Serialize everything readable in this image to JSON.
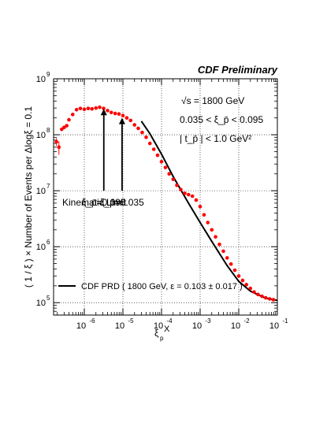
{
  "chart_data": {
    "type": "scatter",
    "title": "CDF Preliminary",
    "x_scale": "log",
    "y_scale": "log",
    "xlim": [
      1.6e-07,
      0.1
    ],
    "ylim": [
      60000,
      1000000000
    ],
    "grid": true,
    "x_ticks": [
      {
        "value": 1e-06,
        "base": "10",
        "exp": "-6"
      },
      {
        "value": 1e-05,
        "base": "10",
        "exp": "-5"
      },
      {
        "value": 0.0001,
        "base": "10",
        "exp": "-4"
      },
      {
        "value": 0.001,
        "base": "10",
        "exp": "-3"
      },
      {
        "value": 0.01,
        "base": "10",
        "exp": "-2"
      },
      {
        "value": 0.1,
        "base": "10",
        "exp": "-1"
      }
    ],
    "y_ticks": [
      {
        "value": 100000.0,
        "base": "10",
        "exp": "5"
      },
      {
        "value": 1000000.0,
        "base": "10",
        "exp": "6"
      },
      {
        "value": 10000000.0,
        "base": "10",
        "exp": "7"
      },
      {
        "value": 100000000.0,
        "base": "10",
        "exp": "8"
      },
      {
        "value": 1000000000.0,
        "base": "10",
        "exp": "9"
      }
    ],
    "xlabel": {
      "main": "ξ",
      "sub": "p",
      "suffix": "X"
    },
    "ylabel": "( 1 / ξ ) × Number of Events per Δlogξ = 0.1",
    "energy_label": "√s = 1800 GeV",
    "cut_labels": [
      "0.035 < ξ_p̄ < 0.095",
      "| t_p̄ | < 1.0 GeV²"
    ],
    "arrows": [
      {
        "x": 3.2e-06,
        "y_tail": 10000000.0,
        "y_head": 290000000.0,
        "label": "ξ_p̄=0.095"
      },
      {
        "x": 9.5e-06,
        "y_tail": 10000000.0,
        "y_head": 200000000.0,
        "label": "ξ_p̄=0.035"
      }
    ],
    "kinematic_label": "Kinematic Limit",
    "legend": {
      "position": "bottom",
      "label": "CDF PRD ( 1800 GeV, ε = 0.103 ± 0.017 )"
    },
    "series": [
      {
        "marker_color": "#ff0000",
        "points": [
          [
            1.9e-07,
            75000000.0,
            12000000.0
          ],
          [
            2.2e-07,
            60000000.0,
            16000000.0
          ],
          [
            2.6e-07,
            125000000.0,
            0
          ],
          [
            3e-07,
            135000000.0,
            0
          ],
          [
            3.5e-07,
            145000000.0,
            0
          ],
          [
            4e-07,
            185000000.0,
            0
          ],
          [
            5e-07,
            230000000.0,
            0
          ],
          [
            6.3e-07,
            280000000.0,
            0
          ],
          [
            7.9e-07,
            295000000.0,
            0
          ],
          [
            1e-06,
            285000000.0,
            0
          ],
          [
            1.26e-06,
            295000000.0,
            0
          ],
          [
            1.58e-06,
            290000000.0,
            0
          ],
          [
            2e-06,
            300000000.0,
            0
          ],
          [
            2.5e-06,
            310000000.0,
            0
          ],
          [
            3.16e-06,
            295000000.0,
            0
          ],
          [
            4e-06,
            270000000.0,
            0
          ],
          [
            5e-06,
            250000000.0,
            0
          ],
          [
            6.3e-06,
            240000000.0,
            0
          ],
          [
            7.9e-06,
            235000000.0,
            0
          ],
          [
            1e-05,
            220000000.0,
            0
          ],
          [
            1.26e-05,
            200000000.0,
            0
          ],
          [
            1.58e-05,
            180000000.0,
            0
          ],
          [
            2e-05,
            150000000.0,
            0
          ],
          [
            2.5e-05,
            130000000.0,
            0
          ],
          [
            3.16e-05,
            110000000.0,
            0
          ],
          [
            4e-05,
            90000000.0,
            0
          ],
          [
            5e-05,
            70000000.0,
            0
          ],
          [
            6.3e-05,
            55000000.0,
            0
          ],
          [
            7.9e-05,
            43000000.0,
            0
          ],
          [
            0.0001,
            33000000.0,
            0
          ],
          [
            0.000126,
            26000000.0,
            0
          ],
          [
            0.000158,
            20000000.0,
            0
          ],
          [
            0.0002,
            16000000.0,
            0
          ],
          [
            0.00025,
            12500000.0,
            0
          ],
          [
            0.000316,
            10500000.0,
            0
          ],
          [
            0.0004,
            9000000.0,
            0
          ],
          [
            0.0005,
            8500000.0,
            0
          ],
          [
            0.00063,
            8000000.0,
            0
          ],
          [
            0.00079,
            6800000.0,
            0
          ],
          [
            0.001,
            5200000.0,
            0
          ],
          [
            0.00126,
            3700000.0,
            0
          ],
          [
            0.00158,
            2700000.0,
            0
          ],
          [
            0.002,
            2000000.0,
            0
          ],
          [
            0.0025,
            1500000.0,
            0
          ],
          [
            0.00316,
            1100000.0,
            0
          ],
          [
            0.004,
            830000.0,
            0
          ],
          [
            0.005,
            630000.0,
            0
          ],
          [
            0.0063,
            490000.0,
            0
          ],
          [
            0.0079,
            380000.0,
            0
          ],
          [
            0.01,
            300000.0,
            0
          ],
          [
            0.0126,
            250000.0,
            0
          ],
          [
            0.0158,
            210000.0,
            0
          ],
          [
            0.02,
            180000.0,
            0
          ],
          [
            0.025,
            155000.0,
            0
          ],
          [
            0.0316,
            140000.0,
            0
          ],
          [
            0.04,
            130000.0,
            0
          ],
          [
            0.05,
            122000.0,
            0
          ],
          [
            0.063,
            117000.0,
            0
          ],
          [
            0.079,
            113000.0,
            0
          ]
        ]
      },
      {
        "line_color": "#000000",
        "points": [
          [
            3e-05,
            175000000.0
          ],
          [
            5e-05,
            105000000.0
          ],
          [
            0.0001,
            45000000.0
          ],
          [
            0.0002,
            18000000.0
          ],
          [
            0.0005,
            6000000.0
          ],
          [
            0.001,
            2700000.0
          ],
          [
            0.002,
            1250000.0
          ],
          [
            0.005,
            460000.0
          ],
          [
            0.01,
            240000.0
          ],
          [
            0.02,
            160000.0
          ],
          [
            0.05,
            120000.0
          ],
          [
            0.1,
            110000.0
          ]
        ]
      }
    ]
  }
}
